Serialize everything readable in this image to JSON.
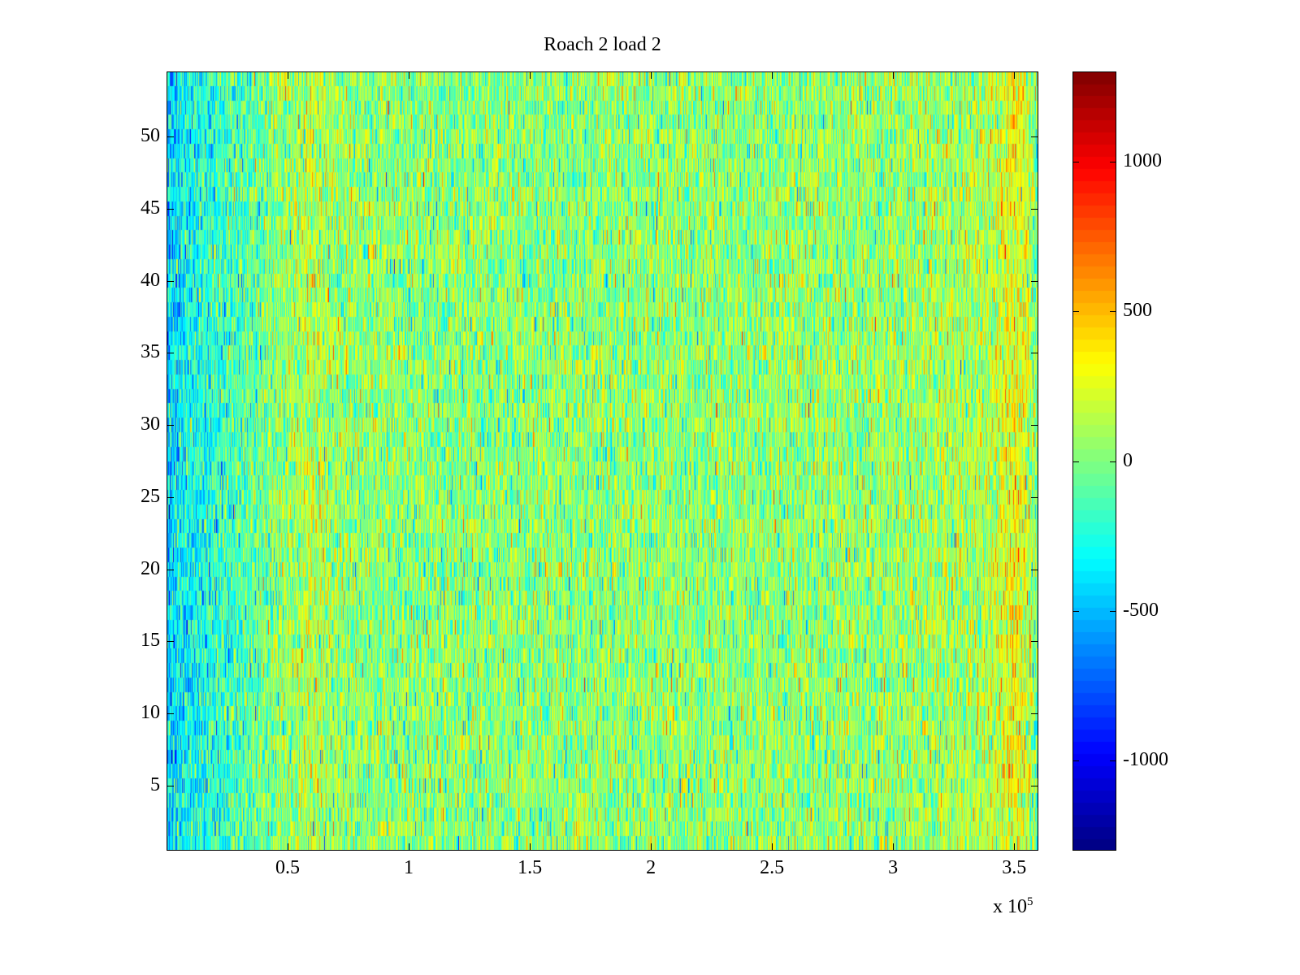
{
  "chart_data": {
    "type": "heatmap",
    "title": "Roach 2 load 2",
    "xlabel": "",
    "ylabel": "",
    "x_multiplier_label": "x 10",
    "x_multiplier_exponent": "5",
    "xlim": [
      1,
      360000
    ],
    "ylim": [
      0.5,
      54.5
    ],
    "rows": 54,
    "xticks": [
      50000,
      100000,
      150000,
      200000,
      250000,
      300000,
      350000
    ],
    "xtick_labels": [
      "0.5",
      "1",
      "1.5",
      "2",
      "2.5",
      "3",
      "3.5"
    ],
    "yticks": [
      5,
      10,
      15,
      20,
      25,
      30,
      35,
      40,
      45,
      50
    ],
    "ytick_labels": [
      "5",
      "10",
      "15",
      "20",
      "25",
      "30",
      "35",
      "40",
      "45",
      "50"
    ],
    "colorbar": {
      "colormap": "jet",
      "clim": [
        -1300,
        1300
      ],
      "ticks": [
        -1000,
        -500,
        0,
        500,
        1000
      ],
      "tick_labels": [
        "-1000",
        "-500",
        "0",
        "500",
        "1000"
      ],
      "location": "right"
    },
    "approx_column_mean_profile": {
      "x": [
        0,
        15000,
        50000,
        60000,
        70000,
        110000,
        200000,
        300000,
        340000,
        350000,
        355000,
        360000
      ],
      "mean": [
        -420,
        -250,
        60,
        160,
        40,
        20,
        40,
        50,
        120,
        320,
        200,
        -80
      ]
    },
    "approx_noise_std": 230
  }
}
